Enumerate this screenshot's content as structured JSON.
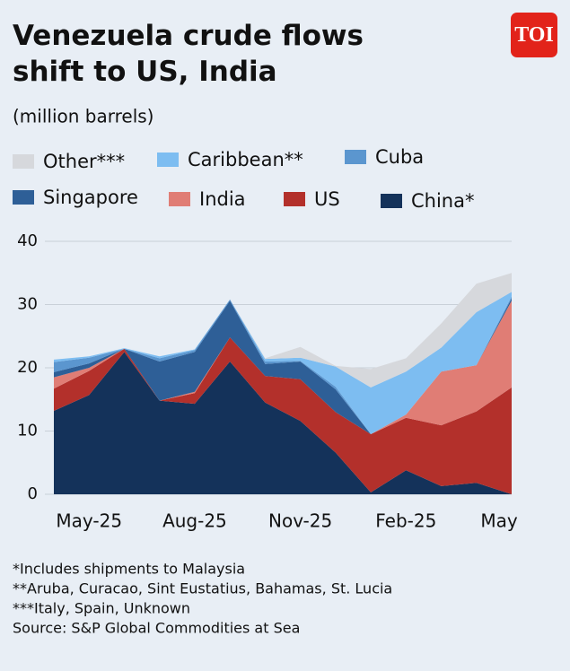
{
  "logo": "TOI",
  "chart_data": {
    "type": "stacked_area",
    "title": "Venezuela crude flows shift to US, India",
    "subtitle": "(million barrels)",
    "categories": [
      null,
      "May-25",
      null,
      null,
      "Aug-25",
      null,
      null,
      "Nov-25",
      null,
      null,
      "Feb-25",
      null,
      null,
      "May"
    ],
    "series": [
      {
        "name": "Other***",
        "color": "#d6d8dc",
        "values": [
          0,
          0,
          0,
          0,
          0,
          0,
          0.1,
          1.7,
          0.1,
          2.9,
          2.1,
          3.8,
          4.5,
          3
        ]
      },
      {
        "name": "Caribbean**",
        "color": "#7dbdf1",
        "values": [
          0.4,
          0.2,
          0.1,
          0.3,
          0.1,
          0,
          0.4,
          0.5,
          3.2,
          7.4,
          6.8,
          3.8,
          8.4,
          0.7
        ]
      },
      {
        "name": "Cuba",
        "color": "#5b96cf",
        "values": [
          1.6,
          0.9,
          0,
          0.5,
          0.3,
          0.2,
          0.4,
          0.1,
          0.4,
          0,
          0,
          0,
          0,
          0.3
        ]
      },
      {
        "name": "Singapore",
        "color": "#2e5f97",
        "values": [
          0.8,
          0.7,
          0,
          6.2,
          6.3,
          5.8,
          1.9,
          2.8,
          3.6,
          0,
          0,
          0,
          0,
          0.4
        ]
      },
      {
        "name": "India",
        "color": "#e07d75",
        "values": [
          1.8,
          0.5,
          0,
          0,
          0.2,
          0,
          0,
          0,
          0,
          0,
          0.5,
          8.5,
          7.3,
          13.7
        ]
      },
      {
        "name": "US",
        "color": "#b3302b",
        "values": [
          3.5,
          3.8,
          0.5,
          0,
          1.7,
          3.8,
          4.2,
          6.6,
          6.4,
          9.2,
          8.3,
          9.6,
          11.3,
          16.9
        ]
      },
      {
        "name": "China*",
        "color": "#14325a",
        "values": [
          13.2,
          15.7,
          22.5,
          14.8,
          14.3,
          21,
          14.5,
          11.6,
          6.6,
          0.3,
          3.8,
          1.3,
          1.8,
          0
        ]
      }
    ],
    "ylim": [
      0,
      40
    ],
    "yticks": [
      0,
      10,
      20,
      30,
      40
    ],
    "grid": true,
    "notes": [
      "*Includes shipments to Malaysia",
      "**Aruba, Curacao, Sint Eustatius, Bahamas, St. Lucia",
      "***Italy, Spain, Unknown",
      "Source: S&P Global Commodities at Sea"
    ]
  }
}
